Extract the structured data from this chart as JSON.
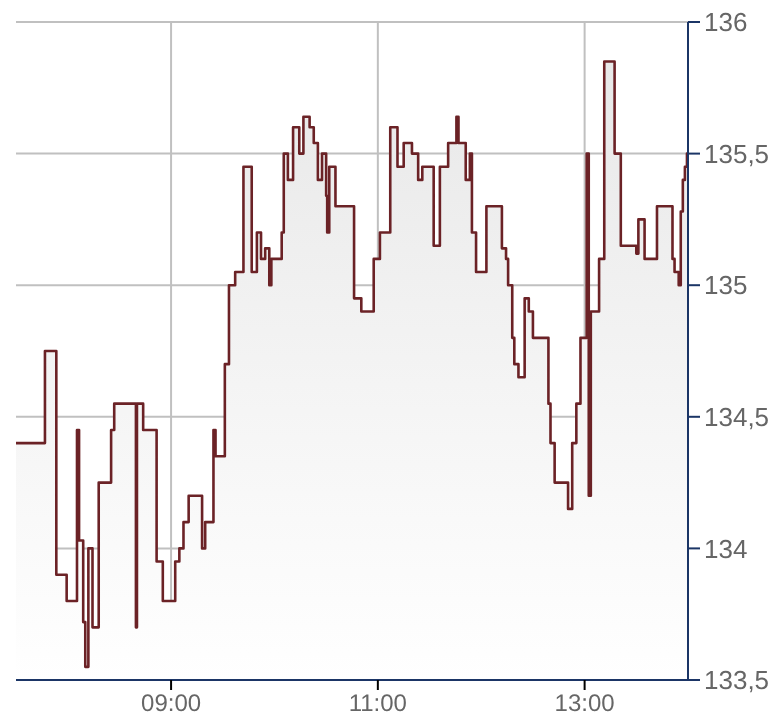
{
  "chart_data": {
    "type": "area",
    "xlim": [
      7.5,
      14
    ],
    "xticks": [
      {
        "value": 9,
        "label": "09:00"
      },
      {
        "value": 11,
        "label": "11:00"
      },
      {
        "value": 13,
        "label": "13:00"
      }
    ],
    "ylim": [
      133.5,
      136
    ],
    "yticks": [
      {
        "value": 133.5,
        "label": "133,5"
      },
      134,
      {
        "value": 134.5,
        "label": "134,5"
      },
      135,
      {
        "value": 135.5,
        "label": "135,5"
      },
      136
    ],
    "grid": true,
    "legend": false,
    "series": [
      {
        "color": "#6b2226",
        "x": [
          7.5,
          7.78,
          7.78,
          7.89,
          7.89,
          7.99,
          7.99,
          8.09,
          8.09,
          8.11,
          8.11,
          8.15,
          8.15,
          8.17,
          8.17,
          8.2,
          8.2,
          8.24,
          8.24,
          8.3,
          8.3,
          8.42,
          8.42,
          8.45,
          8.45,
          8.66,
          8.66,
          8.67,
          8.67,
          8.73,
          8.73,
          8.86,
          8.86,
          8.92,
          8.92,
          9.04,
          9.04,
          9.08,
          9.08,
          9.12,
          9.12,
          9.17,
          9.17,
          9.3,
          9.3,
          9.33,
          9.33,
          9.41,
          9.41,
          9.43,
          9.43,
          9.52,
          9.52,
          9.56,
          9.56,
          9.62,
          9.62,
          9.7,
          9.7,
          9.78,
          9.78,
          9.83,
          9.83,
          9.87,
          9.87,
          9.91,
          9.91,
          9.95,
          9.95,
          9.97,
          9.97,
          10.07,
          10.07,
          10.09,
          10.09,
          10.13,
          10.13,
          10.18,
          10.18,
          10.24,
          10.24,
          10.28,
          10.28,
          10.34,
          10.34,
          10.38,
          10.38,
          10.42,
          10.42,
          10.46,
          10.46,
          10.5,
          10.5,
          10.51,
          10.51,
          10.53,
          10.53,
          10.59,
          10.59,
          10.77,
          10.77,
          10.84,
          10.84,
          10.96,
          10.96,
          11.02,
          11.02,
          11.12,
          11.12,
          11.19,
          11.19,
          11.25,
          11.25,
          11.33,
          11.33,
          11.39,
          11.39,
          11.43,
          11.43,
          11.54,
          11.54,
          11.6,
          11.6,
          11.68,
          11.68,
          11.76,
          11.76,
          11.78,
          11.78,
          11.85,
          11.85,
          11.89,
          11.89,
          11.91,
          11.91,
          11.95,
          11.95,
          12.05,
          12.05,
          12.2,
          12.2,
          12.24,
          12.24,
          12.26,
          12.26,
          12.3,
          12.3,
          12.32,
          12.32,
          12.36,
          12.36,
          12.42,
          12.42,
          12.46,
          12.46,
          12.5,
          12.5,
          12.65,
          12.65,
          12.67,
          12.67,
          12.71,
          12.71,
          12.84,
          12.84,
          12.88,
          12.88,
          12.92,
          12.92,
          12.96,
          12.96,
          13.02,
          13.02,
          13.04,
          13.04,
          13.06,
          13.06,
          13.14,
          13.14,
          13.19,
          13.19,
          13.29,
          13.29,
          13.35,
          13.35,
          13.5,
          13.5,
          13.52,
          13.52,
          13.58,
          13.58,
          13.7,
          13.7,
          13.85,
          13.85,
          13.87,
          13.87,
          13.91,
          13.91,
          13.93,
          13.93,
          13.95,
          13.95,
          13.97,
          13.97,
          13.99,
          13.99,
          14
        ],
        "values": [
          134.4,
          134.4,
          134.75,
          134.75,
          133.9,
          133.9,
          133.8,
          133.8,
          134.45,
          134.45,
          134.03,
          134.03,
          133.72,
          133.72,
          133.55,
          133.55,
          134.0,
          134.0,
          133.7,
          133.7,
          134.25,
          134.25,
          134.45,
          134.45,
          134.55,
          134.55,
          133.7,
          133.7,
          134.55,
          134.55,
          134.45,
          134.45,
          133.95,
          133.95,
          133.8,
          133.8,
          133.95,
          133.95,
          134.0,
          134.0,
          134.1,
          134.1,
          134.2,
          134.2,
          134.0,
          134.0,
          134.1,
          134.1,
          134.45,
          134.45,
          134.35,
          134.35,
          134.7,
          134.7,
          135.0,
          135.0,
          135.05,
          135.05,
          135.45,
          135.45,
          135.05,
          135.05,
          135.2,
          135.2,
          135.1,
          135.1,
          135.14,
          135.14,
          135.0,
          135.0,
          135.1,
          135.1,
          135.2,
          135.2,
          135.5,
          135.5,
          135.4,
          135.4,
          135.6,
          135.6,
          135.5,
          135.5,
          135.64,
          135.64,
          135.6,
          135.6,
          135.54,
          135.54,
          135.4,
          135.4,
          135.5,
          135.5,
          135.34,
          135.34,
          135.2,
          135.2,
          135.45,
          135.45,
          135.3,
          135.3,
          134.95,
          134.95,
          134.9,
          134.9,
          135.1,
          135.1,
          135.2,
          135.2,
          135.6,
          135.6,
          135.45,
          135.45,
          135.54,
          135.54,
          135.5,
          135.5,
          135.4,
          135.4,
          135.45,
          135.45,
          135.15,
          135.15,
          135.45,
          135.45,
          135.54,
          135.54,
          135.64,
          135.64,
          135.54,
          135.54,
          135.4,
          135.4,
          135.5,
          135.5,
          135.2,
          135.2,
          135.05,
          135.05,
          135.3,
          135.3,
          135.14,
          135.14,
          135.1,
          135.1,
          135.0,
          135.0,
          134.8,
          134.8,
          134.7,
          134.7,
          134.65,
          134.65,
          134.95,
          134.95,
          134.9,
          134.9,
          134.8,
          134.8,
          134.55,
          134.55,
          134.4,
          134.4,
          134.25,
          134.25,
          134.15,
          134.15,
          134.4,
          134.4,
          134.55,
          134.55,
          134.8,
          134.8,
          135.5,
          135.5,
          134.2,
          134.2,
          134.9,
          134.9,
          135.1,
          135.1,
          135.85,
          135.85,
          135.5,
          135.5,
          135.15,
          135.15,
          135.12,
          135.12,
          135.25,
          135.25,
          135.1,
          135.1,
          135.3,
          135.3,
          135.1,
          135.1,
          135.05,
          135.05,
          135.0,
          135.0,
          135.28,
          135.28,
          135.4,
          135.4,
          135.45,
          135.45,
          135.5,
          135.5
        ]
      }
    ]
  }
}
